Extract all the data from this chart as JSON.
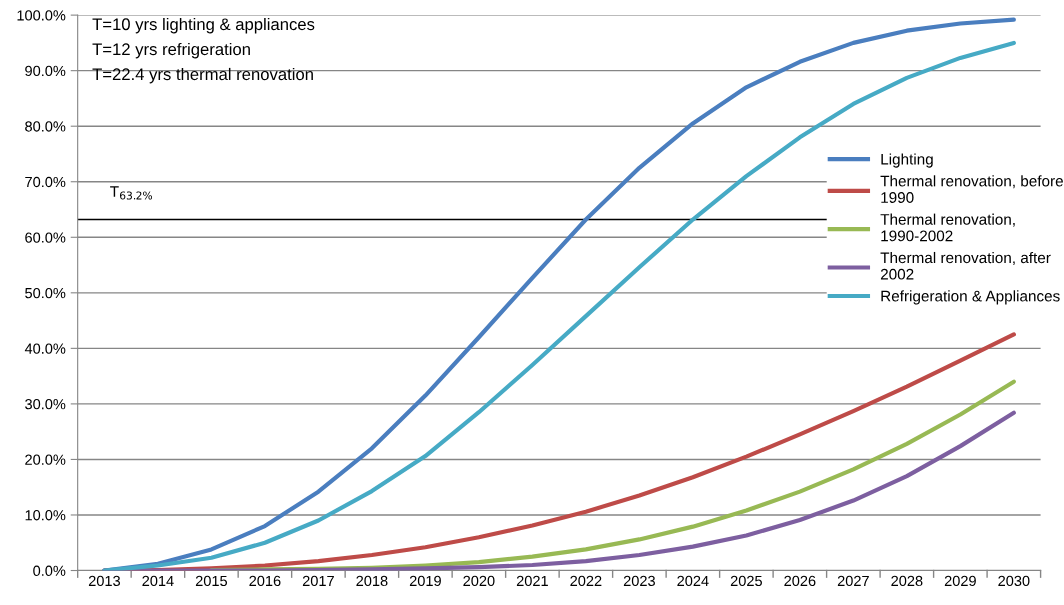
{
  "chart_data": {
    "type": "line",
    "categories": [
      "2013",
      "2014",
      "2015",
      "2016",
      "2017",
      "2018",
      "2019",
      "2020",
      "2021",
      "2022",
      "2023",
      "2024",
      "2025",
      "2026",
      "2027",
      "2028",
      "2029",
      "2030"
    ],
    "series": [
      {
        "name": "Lighting",
        "color": "#4a7ebf",
        "values": [
          0,
          1.2,
          3.8,
          8,
          14.2,
          22,
          31.5,
          42,
          52.7,
          63.2,
          72.5,
          80.5,
          87,
          91.6,
          95,
          97.2,
          98.5,
          99.2
        ]
      },
      {
        "name": "Thermal renovation, before 1990",
        "color": "#be4b48",
        "values": [
          0,
          0.1,
          0.4,
          0.9,
          1.7,
          2.8,
          4.2,
          6,
          8.1,
          10.6,
          13.5,
          16.8,
          20.5,
          24.5,
          28.7,
          33.1,
          37.8,
          42.5
        ]
      },
      {
        "name": "Thermal renovation, 1990-2002",
        "color": "#98b954",
        "values": [
          null,
          null,
          0.1,
          0.2,
          0.3,
          0.5,
          0.9,
          1.5,
          2.5,
          3.8,
          5.6,
          7.9,
          10.8,
          14.2,
          18.2,
          22.8,
          28.1,
          34
        ]
      },
      {
        "name": "Thermal renovation, after 2002",
        "color": "#7d5fa0",
        "values": [
          0,
          0,
          0,
          0,
          0.1,
          0.2,
          0.4,
          0.6,
          1.0,
          1.7,
          2.8,
          4.3,
          6.3,
          9.1,
          12.6,
          17,
          22.4,
          28.4
        ]
      },
      {
        "name": "Refrigeration & Appliances",
        "color": "#46aac5",
        "values": [
          0,
          0.9,
          2.3,
          5,
          9,
          14.3,
          20.6,
          28.5,
          37,
          45.8,
          54.6,
          63.2,
          71,
          78,
          84,
          88.7,
          92.3,
          95
        ]
      }
    ],
    "ylim": [
      0,
      100
    ],
    "yticks": [
      {
        "value": 0,
        "label": "0.0%"
      },
      {
        "value": 10,
        "label": "10.0%"
      },
      {
        "value": 20,
        "label": "20.0%"
      },
      {
        "value": 30,
        "label": "30.0%"
      },
      {
        "value": 40,
        "label": "40.0%"
      },
      {
        "value": 50,
        "label": "50.0%"
      },
      {
        "value": 60,
        "label": "60.0%"
      },
      {
        "value": 70,
        "label": "70.0%"
      },
      {
        "value": 80,
        "label": "80.0%"
      },
      {
        "value": 90,
        "label": "90.0%"
      },
      {
        "value": 100,
        "label": "100.0%"
      }
    ],
    "grid": "y",
    "legend": "right",
    "marker": "none",
    "line_style": "solid",
    "ref_lines": [
      {
        "axis": "y",
        "value": 63.2,
        "label": "T$_{63.2%}$",
        "color": "#000000"
      }
    ],
    "annotations": [
      "T=10 yrs lighting & appliances",
      "T=12 yrs refrigeration",
      "T=22.4 yrs thermal renovation"
    ]
  }
}
